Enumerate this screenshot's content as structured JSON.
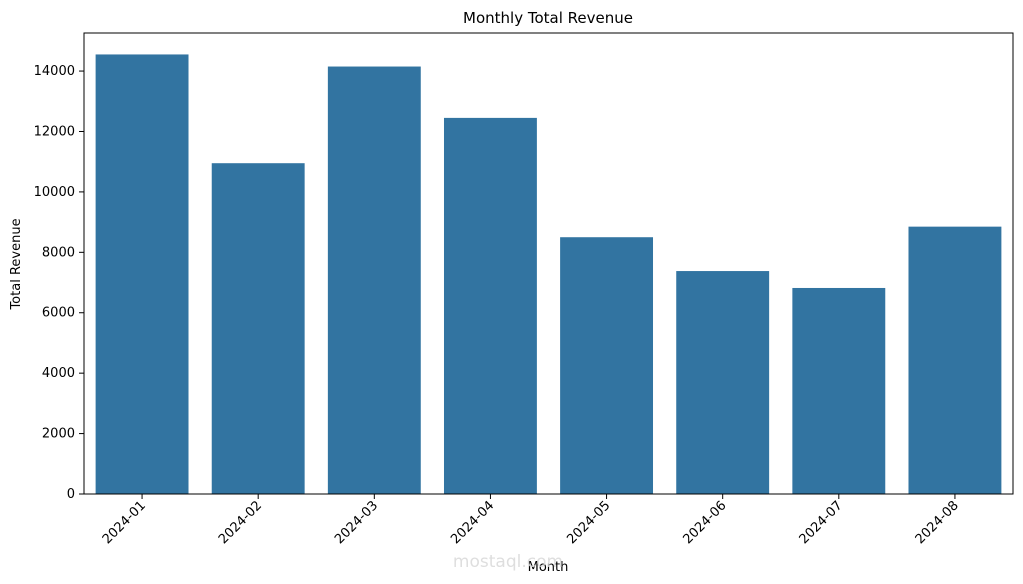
{
  "chart_data": {
    "type": "bar",
    "title": "Monthly Total Revenue",
    "xlabel": "Month",
    "ylabel": "Total Revenue",
    "categories": [
      "2024-01",
      "2024-02",
      "2024-03",
      "2024-04",
      "2024-05",
      "2024-06",
      "2024-07",
      "2024-08"
    ],
    "values": [
      14550,
      10950,
      14150,
      12450,
      8500,
      7380,
      6820,
      8850
    ],
    "ylim": [
      0,
      15260
    ],
    "yticks": [
      0,
      2000,
      4000,
      6000,
      8000,
      10000,
      12000,
      14000
    ],
    "grid": false,
    "legend": "none",
    "bar_color": "#3274a1",
    "x_tick_rotation": 45
  },
  "watermark": {
    "text": "mostaql.com"
  }
}
